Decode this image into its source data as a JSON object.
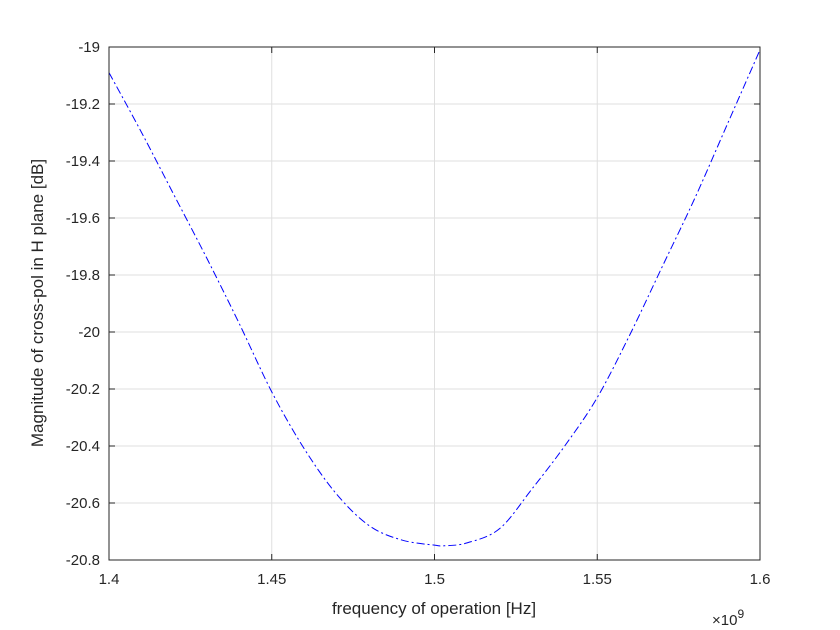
{
  "chart_data": {
    "type": "line",
    "title": "",
    "xlabel": "frequency of operation [Hz]",
    "ylabel": "Magnitude of cross-pol in H plane [dB]",
    "x_exponent_label": "×10",
    "x_exponent_power": "9",
    "xlim": [
      1.4,
      1.6
    ],
    "ylim": [
      -20.8,
      -19.0
    ],
    "x_scale_factor": 1000000000.0,
    "x_ticks": [
      1.4,
      1.45,
      1.5,
      1.55,
      1.6
    ],
    "x_tick_labels": [
      "1.4",
      "1.45",
      "1.5",
      "1.55",
      "1.6"
    ],
    "y_ticks": [
      -19.0,
      -19.2,
      -19.4,
      -19.6,
      -19.8,
      -20.0,
      -20.2,
      -20.4,
      -20.6,
      -20.8
    ],
    "y_tick_labels": [
      "-19",
      "-19.2",
      "-19.4",
      "-19.6",
      "-19.8",
      "-20",
      "-20.2",
      "-20.4",
      "-20.6",
      "-20.8"
    ],
    "grid": true,
    "series": [
      {
        "color": "#0000ff",
        "line_style": "dash-dot",
        "x": [
          1.4,
          1.41,
          1.42,
          1.43,
          1.44,
          1.45,
          1.46,
          1.47,
          1.48,
          1.49,
          1.5,
          1.503,
          1.51,
          1.52,
          1.53,
          1.54,
          1.55,
          1.56,
          1.57,
          1.58,
          1.59,
          1.6
        ],
        "values": [
          -19.09,
          -19.3,
          -19.52,
          -19.74,
          -19.97,
          -20.21,
          -20.41,
          -20.57,
          -20.68,
          -20.73,
          -20.748,
          -20.75,
          -20.74,
          -20.69,
          -20.55,
          -20.4,
          -20.23,
          -20.01,
          -19.77,
          -19.53,
          -19.27,
          -19.01
        ]
      }
    ]
  }
}
